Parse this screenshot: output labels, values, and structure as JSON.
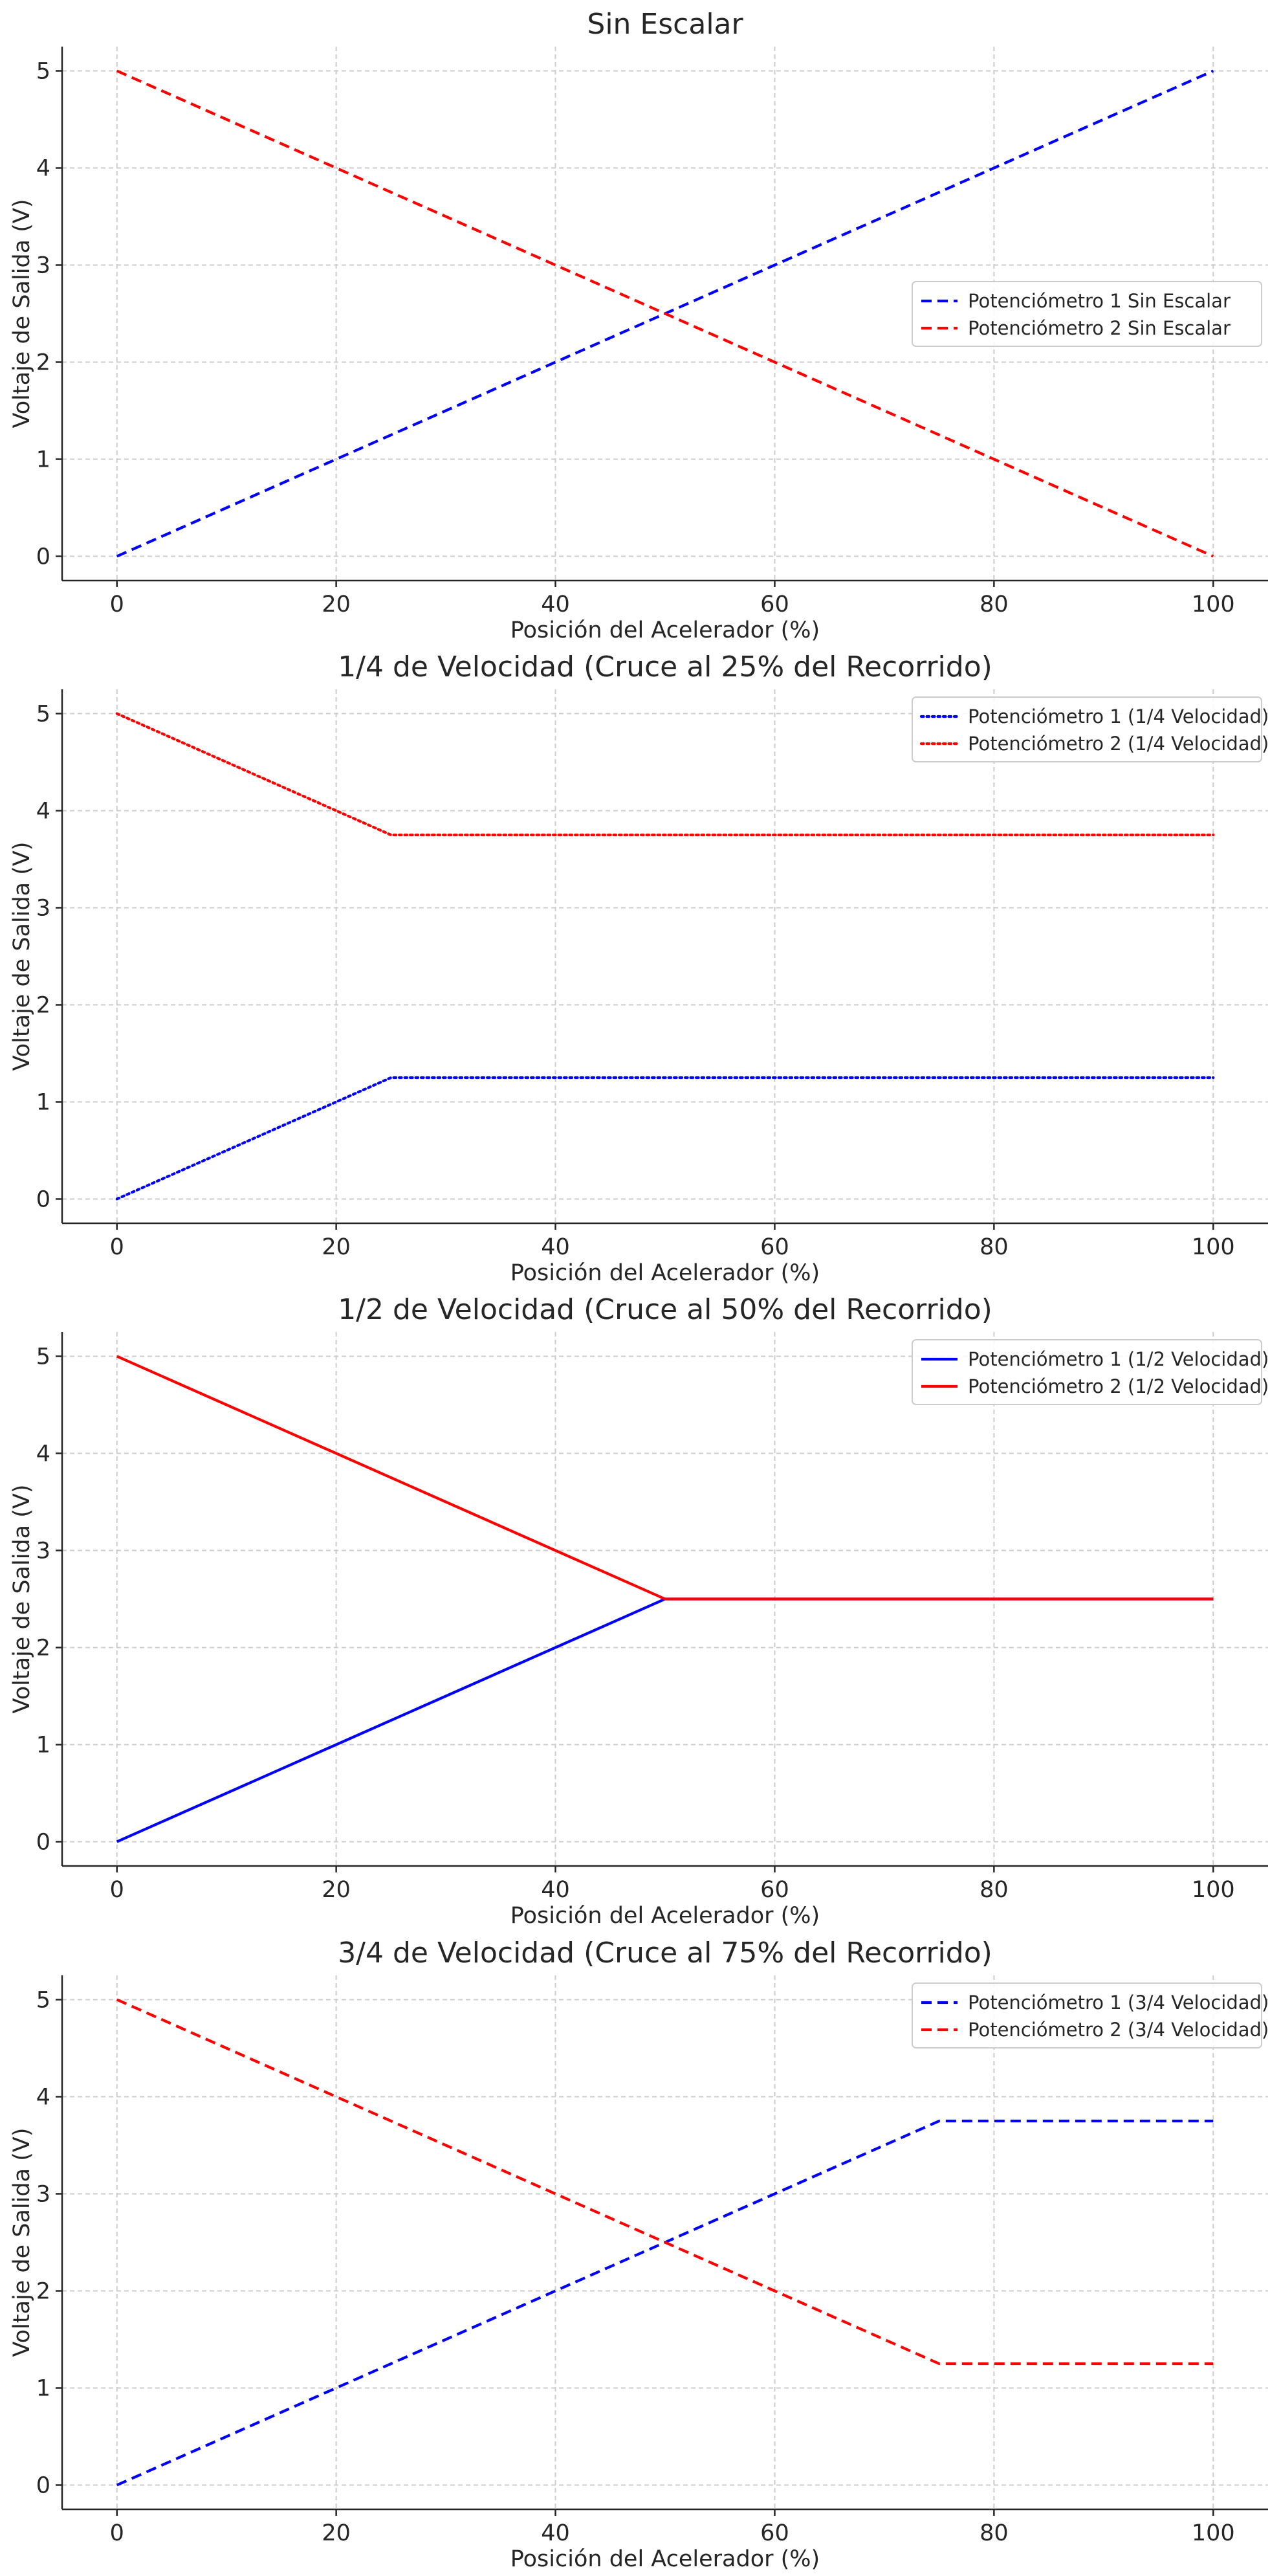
{
  "chart_data": [
    {
      "type": "line",
      "title": "Sin Escalar",
      "xlabel": "Posición del Acelerador (%)",
      "ylabel": "Voltaje de Salida (V)",
      "xlim": [
        -5,
        105
      ],
      "ylim": [
        -0.25,
        5.25
      ],
      "xticks": [
        "0",
        "20",
        "40",
        "60",
        "80",
        "100"
      ],
      "yticks": [
        "0",
        "1",
        "2",
        "3",
        "4",
        "5"
      ],
      "grid": true,
      "legend_position": "center-right",
      "series": [
        {
          "name": "Potenciómetro 1 Sin Escalar",
          "color": "#0000ff",
          "style": "dashed",
          "x": [
            0,
            100
          ],
          "y": [
            0,
            5
          ]
        },
        {
          "name": "Potenciómetro 2 Sin Escalar",
          "color": "#ff0000",
          "style": "dashed",
          "x": [
            0,
            100
          ],
          "y": [
            5,
            0
          ]
        }
      ]
    },
    {
      "type": "line",
      "title": "1/4 de Velocidad (Cruce al 25% del Recorrido)",
      "xlabel": "Posición del Acelerador (%)",
      "ylabel": "Voltaje de Salida (V)",
      "xlim": [
        -5,
        105
      ],
      "ylim": [
        -0.25,
        5.25
      ],
      "xticks": [
        "0",
        "20",
        "40",
        "60",
        "80",
        "100"
      ],
      "yticks": [
        "0",
        "1",
        "2",
        "3",
        "4",
        "5"
      ],
      "grid": true,
      "legend_position": "top-right",
      "series": [
        {
          "name": "Potenciómetro 1 (1/4 Velocidad)",
          "color": "#0000ff",
          "style": "dotted",
          "x": [
            0,
            25,
            100
          ],
          "y": [
            0,
            1.25,
            1.25
          ]
        },
        {
          "name": "Potenciómetro 2 (1/4 Velocidad)",
          "color": "#ff0000",
          "style": "dotted",
          "x": [
            0,
            25,
            100
          ],
          "y": [
            5,
            3.75,
            3.75
          ]
        }
      ]
    },
    {
      "type": "line",
      "title": "1/2 de Velocidad (Cruce al 50% del Recorrido)",
      "xlabel": "Posición del Acelerador (%)",
      "ylabel": "Voltaje de Salida (V)",
      "xlim": [
        -5,
        105
      ],
      "ylim": [
        -0.25,
        5.25
      ],
      "xticks": [
        "0",
        "20",
        "40",
        "60",
        "80",
        "100"
      ],
      "yticks": [
        "0",
        "1",
        "2",
        "3",
        "4",
        "5"
      ],
      "grid": true,
      "legend_position": "top-right",
      "series": [
        {
          "name": "Potenciómetro 1 (1/2 Velocidad)",
          "color": "#0000ff",
          "style": "solid",
          "x": [
            0,
            50,
            100
          ],
          "y": [
            0,
            2.5,
            2.5
          ]
        },
        {
          "name": "Potenciómetro 2 (1/2 Velocidad)",
          "color": "#ff0000",
          "style": "solid",
          "x": [
            0,
            50,
            100
          ],
          "y": [
            5,
            2.5,
            2.5
          ]
        }
      ]
    },
    {
      "type": "line",
      "title": "3/4 de Velocidad (Cruce al 75% del Recorrido)",
      "xlabel": "Posición del Acelerador (%)",
      "ylabel": "Voltaje de Salida (V)",
      "xlim": [
        -5,
        105
      ],
      "ylim": [
        -0.25,
        5.25
      ],
      "xticks": [
        "0",
        "20",
        "40",
        "60",
        "80",
        "100"
      ],
      "yticks": [
        "0",
        "1",
        "2",
        "3",
        "4",
        "5"
      ],
      "grid": true,
      "legend_position": "top-right",
      "series": [
        {
          "name": "Potenciómetro 1 (3/4 Velocidad)",
          "color": "#0000ff",
          "style": "dashed",
          "x": [
            0,
            75,
            100
          ],
          "y": [
            0,
            3.75,
            3.75
          ]
        },
        {
          "name": "Potenciómetro 2 (3/4 Velocidad)",
          "color": "#ff0000",
          "style": "dashed",
          "x": [
            0,
            75,
            100
          ],
          "y": [
            5,
            1.25,
            1.25
          ]
        }
      ]
    }
  ]
}
